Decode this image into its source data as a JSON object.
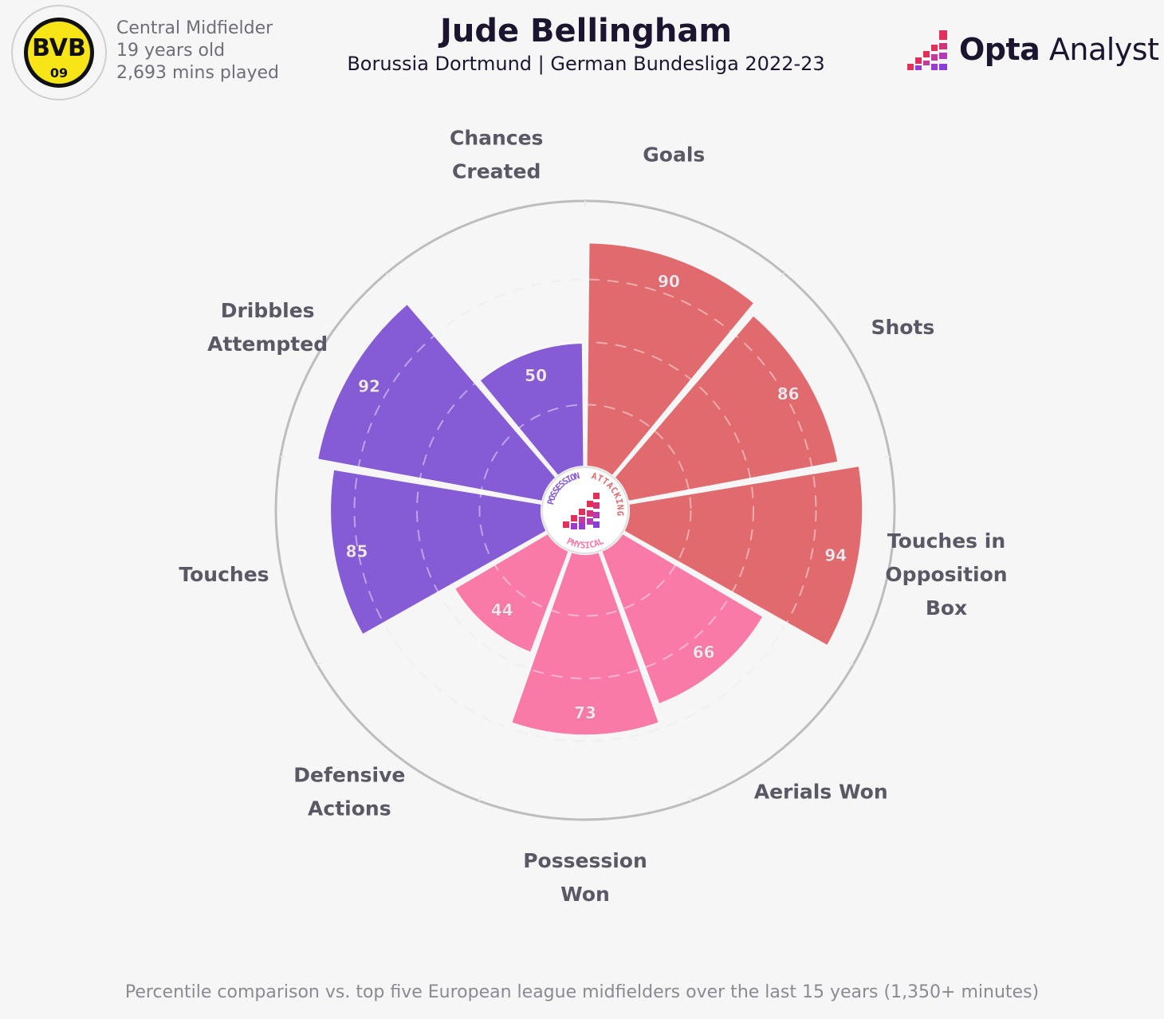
{
  "header": {
    "title": "Jude Bellingham",
    "subtitle": "Borussia Dortmund | German Bundesliga 2022-23",
    "position": "Central Midfielder",
    "age": "19 years old",
    "minutes": "2,693 mins played",
    "badge_text_top": "BVB",
    "badge_text_bottom": "09"
  },
  "brand": {
    "name_bold": "Opta",
    "name_light": " Analyst"
  },
  "footnote": "Percentile comparison vs. top five European league midfielders over the last 15 years (1,350+ minutes)",
  "hub": {
    "labels": [
      "POSSESSION",
      "ATTACKING",
      "PHYSICAL"
    ]
  },
  "colors": {
    "attacking": "#e06a6e",
    "physical": "#f97aa6",
    "possession": "#865bd6",
    "background": "#f6f6f6",
    "text": "#5b5866",
    "value_text": "#f3e6ec"
  },
  "chart_data": {
    "type": "pie",
    "subtype": "polar-area-percentile",
    "scale": [
      0,
      100
    ],
    "categories": [
      "Goals",
      "Shots",
      "Touches in Opposition Box",
      "Aerials Won",
      "Possession Won",
      "Defensive Actions",
      "Touches",
      "Dribbles Attempted",
      "Chances Created"
    ],
    "label_lines": [
      [
        "Goals"
      ],
      [
        "Shots"
      ],
      [
        "Touches in",
        "Opposition",
        "Box"
      ],
      [
        "Aerials Won"
      ],
      [
        "Possession",
        "Won"
      ],
      [
        "Defensive",
        "Actions"
      ],
      [
        "Touches"
      ],
      [
        "Dribbles",
        "Attempted"
      ],
      [
        "Chances",
        "Created"
      ]
    ],
    "values": [
      90,
      86,
      94,
      66,
      73,
      44,
      85,
      92,
      50
    ],
    "groups": [
      "attacking",
      "attacking",
      "attacking",
      "physical",
      "physical",
      "physical",
      "possession",
      "possession",
      "possession"
    ]
  }
}
